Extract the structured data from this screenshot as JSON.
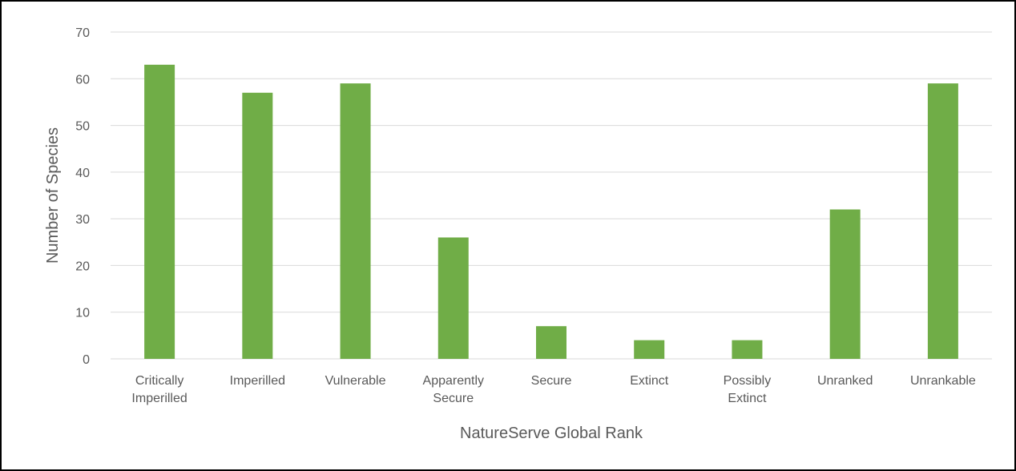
{
  "chart_data": {
    "type": "bar",
    "title": "",
    "xlabel": "NatureServe Global Rank",
    "ylabel": "Number of Species",
    "ylim": [
      0,
      70
    ],
    "yticks": [
      0,
      10,
      20,
      30,
      40,
      50,
      60,
      70
    ],
    "grid": true,
    "legend": "none",
    "bar_color": "#70AD47",
    "categories": [
      [
        "Critically",
        "Imperilled"
      ],
      [
        "Imperilled"
      ],
      [
        "Vulnerable"
      ],
      [
        "Apparently",
        "Secure"
      ],
      [
        "Secure"
      ],
      [
        "Extinct"
      ],
      [
        "Possibly",
        "Extinct"
      ],
      [
        "Unranked"
      ],
      [
        "Unrankable"
      ]
    ],
    "values": [
      63,
      57,
      59,
      26,
      7,
      4,
      4,
      32,
      59
    ]
  }
}
